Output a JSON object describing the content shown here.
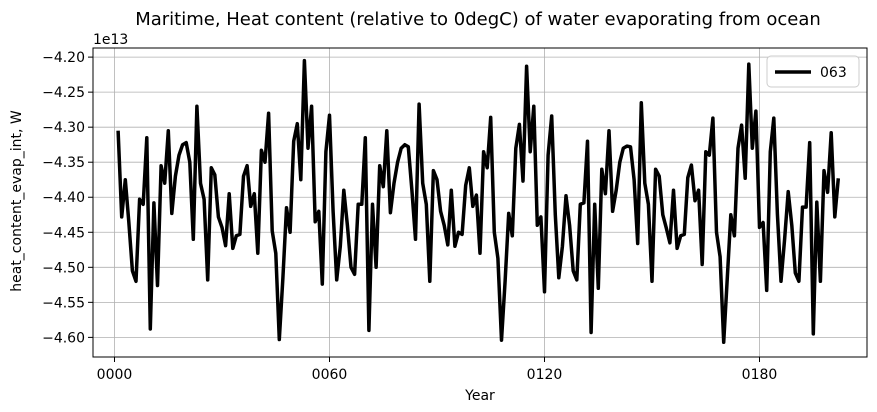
{
  "chart_data": {
    "type": "line",
    "title": "Maritime, Heat content (relative to 0degC) of water evaporating from ocean",
    "xlabel": "Year",
    "ylabel": "heat_content_evap_int, W",
    "y_offset_label": "1e13",
    "y_scale_exponent": 13,
    "xlim": [
      -6,
      210
    ],
    "ylim": [
      -4.628,
      -4.187
    ],
    "x_ticks": [
      0,
      60,
      120,
      180
    ],
    "x_tick_labels": [
      "0000",
      "0060",
      "0120",
      "0180"
    ],
    "y_ticks": [
      -4.6,
      -4.55,
      -4.5,
      -4.45,
      -4.4,
      -4.35,
      -4.3,
      -4.25,
      -4.2
    ],
    "y_tick_labels": [
      "−4.60",
      "−4.55",
      "−4.50",
      "−4.45",
      "−4.40",
      "−4.35",
      "−4.30",
      "−4.25",
      "−4.20"
    ],
    "grid": true,
    "legend_position": "upper right",
    "series": [
      {
        "name": "063",
        "color": "#000000",
        "x_start": 1,
        "x_step": 1,
        "values": [
          -4.305,
          -4.428,
          -4.375,
          -4.435,
          -4.505,
          -4.52,
          -4.403,
          -4.41,
          -4.315,
          -4.588,
          -4.408,
          -4.526,
          -4.355,
          -4.38,
          -4.305,
          -4.423,
          -4.37,
          -4.34,
          -4.325,
          -4.322,
          -4.35,
          -4.46,
          -4.27,
          -4.38,
          -4.403,
          -4.518,
          -4.358,
          -4.368,
          -4.428,
          -4.443,
          -4.469,
          -4.395,
          -4.473,
          -4.455,
          -4.453,
          -4.37,
          -4.355,
          -4.413,
          -4.395,
          -4.48,
          -4.333,
          -4.35,
          -4.28,
          -4.448,
          -4.48,
          -4.603,
          -4.515,
          -4.415,
          -4.45,
          -4.32,
          -4.295,
          -4.375,
          -4.205,
          -4.33,
          -4.27,
          -4.435,
          -4.42,
          -4.524,
          -4.335,
          -4.283,
          -4.42,
          -4.518,
          -4.47,
          -4.39,
          -4.44,
          -4.5,
          -4.51,
          -4.41,
          -4.41,
          -4.315,
          -4.59,
          -4.41,
          -4.5,
          -4.355,
          -4.385,
          -4.305,
          -4.422,
          -4.38,
          -4.35,
          -4.33,
          -4.325,
          -4.328,
          -4.39,
          -4.46,
          -4.267,
          -4.38,
          -4.41,
          -4.52,
          -4.362,
          -4.375,
          -4.42,
          -4.44,
          -4.468,
          -4.39,
          -4.47,
          -4.45,
          -4.453,
          -4.383,
          -4.358,
          -4.413,
          -4.397,
          -4.48,
          -4.335,
          -4.358,
          -4.286,
          -4.45,
          -4.487,
          -4.604,
          -4.52,
          -4.423,
          -4.455,
          -4.33,
          -4.296,
          -4.377,
          -4.213,
          -4.335,
          -4.27,
          -4.44,
          -4.428,
          -4.535,
          -4.34,
          -4.284,
          -4.425,
          -4.515,
          -4.47,
          -4.398,
          -4.44,
          -4.505,
          -4.518,
          -4.41,
          -4.408,
          -4.32,
          -4.593,
          -4.41,
          -4.53,
          -4.36,
          -4.395,
          -4.305,
          -4.42,
          -4.39,
          -4.35,
          -4.33,
          -4.327,
          -4.328,
          -4.375,
          -4.466,
          -4.265,
          -4.38,
          -4.41,
          -4.52,
          -4.36,
          -4.37,
          -4.425,
          -4.444,
          -4.465,
          -4.39,
          -4.473,
          -4.455,
          -4.453,
          -4.372,
          -4.354,
          -4.405,
          -4.39,
          -4.496,
          -4.335,
          -4.34,
          -4.287,
          -4.45,
          -4.485,
          -4.607,
          -4.515,
          -4.425,
          -4.455,
          -4.33,
          -4.297,
          -4.373,
          -4.21,
          -4.33,
          -4.277,
          -4.443,
          -4.436,
          -4.533,
          -4.335,
          -4.287,
          -4.424,
          -4.52,
          -4.46,
          -4.392,
          -4.44,
          -4.508,
          -4.52,
          -4.414,
          -4.414,
          -4.322,
          -4.595,
          -4.407,
          -4.52,
          -4.362,
          -4.393,
          -4.308,
          -4.428,
          -4.373
        ]
      }
    ]
  }
}
